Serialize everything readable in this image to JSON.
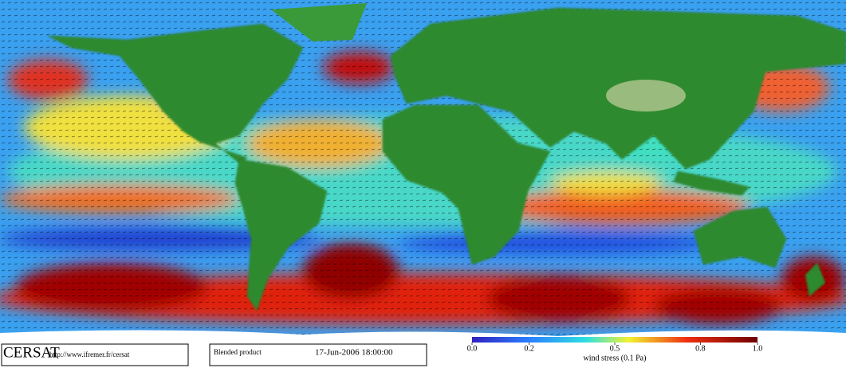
{
  "footer": {
    "logo": "CERSAT",
    "url": "http://www.ifremer.fr/cersat",
    "product": "Blended product",
    "date": "17-Jun-2006 18:00:00"
  },
  "colorbar": {
    "lim": [
      0,
      1
    ],
    "ticks": [
      {
        "value": 0,
        "label": "0.0"
      },
      0.2,
      0.5,
      0.8,
      {
        "value": 1,
        "label": "1.0"
      }
    ],
    "label": "wind stress (0.1 Pa)"
  }
}
